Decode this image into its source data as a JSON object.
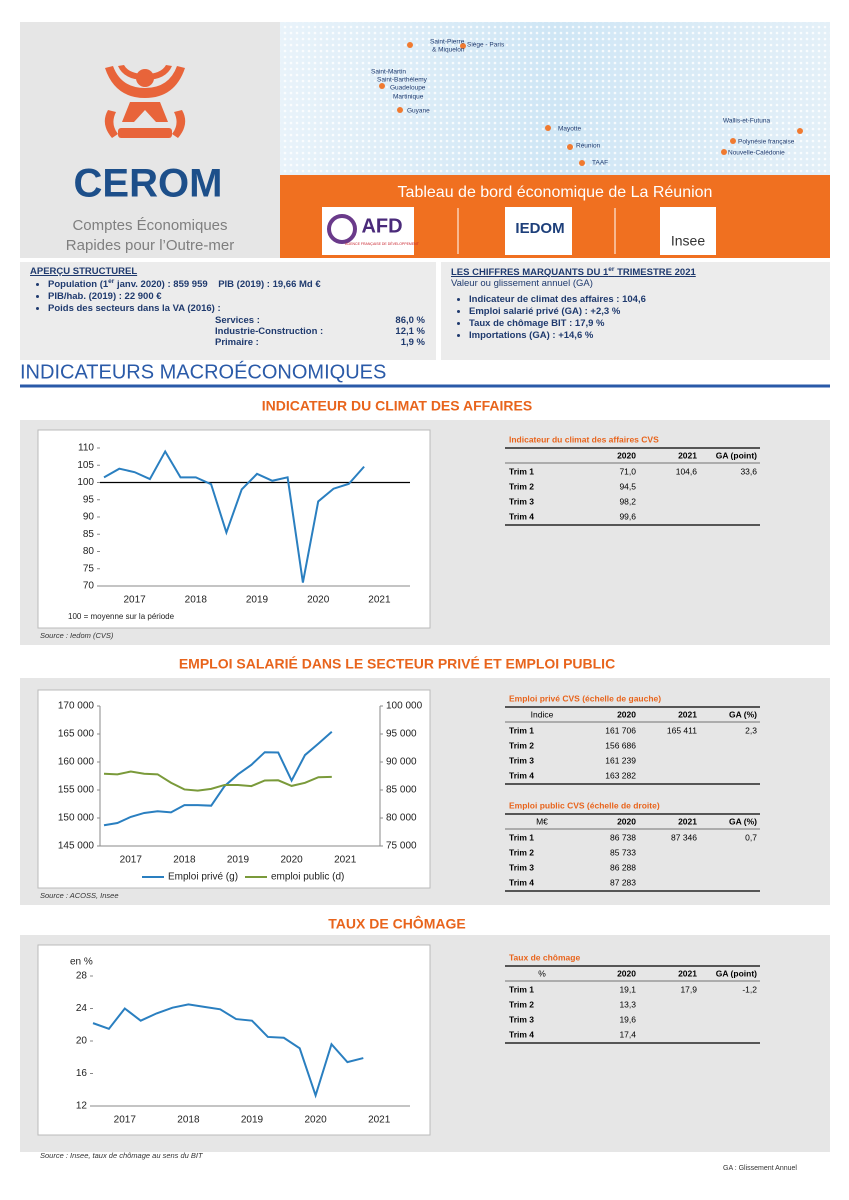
{
  "header": {
    "brand": "CEROM",
    "tagline_1": "Comptes Économiques",
    "tagline_2": "Rapides pour l’Outre-mer",
    "title": "Tableau de bord économique de La Réunion",
    "logos": [
      "AFD",
      "IEDOM",
      "Insee"
    ],
    "afd_sub": "AGENCE FRANÇAISE DE DÉVELOPPEMENT"
  },
  "map_labels": [
    "Saint-Pierre",
    "& Miquelon",
    "Siège - Paris",
    "Saint-Martin",
    "Saint-Barthélemy",
    "Guadeloupe",
    "Martinique",
    "Guyane",
    "Mayotte",
    "Réunion",
    "TAAF",
    "Wallis-et-Futuna",
    "Polynésie française",
    "Nouvelle-Calédonie"
  ],
  "overview": {
    "heading": "APERÇU STRUCTUREL",
    "population": [
      "Population (1",
      "er",
      " janv. 2020) : 859 959"
    ],
    "gdp": "PIB (2019) : 19,66 Md €",
    "gdp_per_capita": "PIB/hab. (2019) : 22 900 €",
    "sectors_heading": "Poids des secteurs dans la VA (2016) :",
    "sectors": [
      [
        "Services :",
        "86,0 %"
      ],
      [
        "Industrie-Construction :",
        "12,1 %"
      ],
      [
        "Primaire :",
        "1,9 %"
      ]
    ]
  },
  "key_figures": {
    "heading": [
      "LES CHIFFRES MARQUANTS DU 1",
      "er",
      " TRIMESTRE 2021"
    ],
    "subtitle": "Valeur ou glissement annuel (GA)",
    "items": [
      "Indicateur de climat des affaires :  104,6",
      "Emploi salarié privé (GA) :  +2,3 %",
      "Taux de chômage BIT :  17,9 %",
      "Importations (GA) : +14,6 %"
    ]
  },
  "section_title": "INDICATEURS MACROÉCONOMIQUES",
  "chart_data": [
    {
      "type": "line",
      "title": "INDICATEUR DU CLIMAT DES AFFAIRES",
      "categories": [
        null,
        "2017",
        null,
        null,
        null,
        "2018",
        null,
        null,
        null,
        "2019",
        null,
        null,
        null,
        "2020",
        null,
        null,
        null,
        "2021"
      ],
      "values": [
        101.5,
        104,
        103,
        101,
        109,
        101.5,
        101.5,
        99.5,
        85.5,
        98,
        102.5,
        100.5,
        101.5,
        71,
        94.5,
        98.2,
        99.6,
        104.6
      ],
      "color": "#2a7fc0",
      "reference_line": 100,
      "ylim": [
        70,
        110
      ],
      "yticks": [
        70,
        75,
        80,
        85,
        90,
        95,
        100,
        105,
        110
      ],
      "note": "100 = moyenne sur la période",
      "source": "Source : Iedom (CVS)"
    },
    {
      "type": "line",
      "title": "EMPLOI SALARIÉ DANS LE SECTEUR PRIVÉ ET EMPLOI PUBLIC",
      "categories": [
        null,
        "2017",
        null,
        null,
        null,
        "2018",
        null,
        null,
        null,
        "2019",
        null,
        null,
        null,
        "2020",
        null,
        null,
        null,
        "2021"
      ],
      "series": [
        {
          "name": "Emploi privé (g)",
          "color": "#2a7fc0",
          "values": [
            148700,
            149100,
            150200,
            150900,
            151200,
            151000,
            152300,
            152300,
            152200,
            155700,
            157800,
            159500,
            161750,
            161706,
            156686,
            161239,
            163282,
            165411
          ]
        },
        {
          "name": "emploi public (d)",
          "color": "#7a9a3a",
          "axis": "y2",
          "values": [
            87900,
            87800,
            88300,
            87900,
            87800,
            86300,
            85100,
            84900,
            85200,
            85900,
            85900,
            85700,
            86700,
            86738,
            85733,
            86288,
            87283,
            87346
          ]
        }
      ],
      "ylim": [
        145000,
        170000
      ],
      "yticks": [
        {
          "value": 145000,
          "label": "145 000"
        },
        {
          "value": 150000,
          "label": "150 000"
        },
        {
          "value": 155000,
          "label": "155 000"
        },
        {
          "value": 160000,
          "label": "160 000"
        },
        {
          "value": 165000,
          "label": "165 000"
        },
        {
          "value": 170000,
          "label": "170 000"
        }
      ],
      "y2lim": [
        75000,
        100000
      ],
      "y2ticks": [
        {
          "value": 75000,
          "label": "75 000"
        },
        {
          "value": 80000,
          "label": "80 000"
        },
        {
          "value": 85000,
          "label": "85 000"
        },
        {
          "value": 90000,
          "label": "90 000"
        },
        {
          "value": 95000,
          "label": "95 000"
        },
        {
          "value": 100000,
          "label": "100 000"
        }
      ],
      "source": "Source : ACOSS, Insee"
    },
    {
      "type": "line",
      "title": "TAUX DE CHÔMAGE",
      "y_label": "en %",
      "categories": [
        null,
        "2017",
        null,
        null,
        null,
        "2018",
        null,
        null,
        null,
        "2019",
        null,
        null,
        null,
        "2020",
        null,
        null,
        null,
        "2021"
      ],
      "values": [
        22.2,
        21.5,
        24,
        22.5,
        23.4,
        24.1,
        24.5,
        24.2,
        23.9,
        22.7,
        22.5,
        20.5,
        20.4,
        19.1,
        13.3,
        19.6,
        17.4,
        17.9
      ],
      "color": "#2a7fc0",
      "ylim": [
        12,
        28
      ],
      "yticks": [
        12,
        16,
        20,
        24,
        28
      ],
      "source": "Source : Insee, taux de chômage au sens du BIT"
    }
  ],
  "tables": [
    {
      "title": "Indicateur du climat des affaires CVS",
      "columns": [
        "2020",
        "2021",
        "GA (point)"
      ],
      "rows": [
        [
          "Trim 1",
          "71,0",
          "104,6",
          "33,6"
        ],
        [
          "Trim 2",
          "94,5"
        ],
        [
          "Trim 3",
          "98,2"
        ],
        [
          "Trim 4",
          "99,6"
        ]
      ]
    },
    {
      "title": "Emploi privé CVS (échelle de gauche)",
      "corner": "Indice",
      "columns": [
        "2020",
        "2021",
        "GA (%)"
      ],
      "rows": [
        [
          "Trim 1",
          "161 706",
          "165 411",
          "2,3"
        ],
        [
          "Trim 2",
          "156 686"
        ],
        [
          "Trim 3",
          "161 239"
        ],
        [
          "Trim 4",
          "163 282"
        ]
      ]
    },
    {
      "title": "Emploi public CVS (échelle de droite)",
      "corner": "M€",
      "columns": [
        "2020",
        "2021",
        "GA (%)"
      ],
      "rows": [
        [
          "Trim 1",
          "86 738",
          "87 346",
          "0,7"
        ],
        [
          "Trim 2",
          "85 733"
        ],
        [
          "Trim 3",
          "86 288"
        ],
        [
          "Trim 4",
          "87 283"
        ]
      ]
    },
    {
      "title": "Taux de chômage",
      "corner": "%",
      "columns": [
        "2020",
        "2021",
        "GA (point)"
      ],
      "rows": [
        [
          "Trim 1",
          "19,1",
          "17,9",
          "-1,2"
        ],
        [
          "Trim 2",
          "13,3"
        ],
        [
          "Trim 3",
          "19,6"
        ],
        [
          "Trim 4",
          "17,4"
        ]
      ]
    }
  ],
  "footer": "GA : Glissement Annuel"
}
